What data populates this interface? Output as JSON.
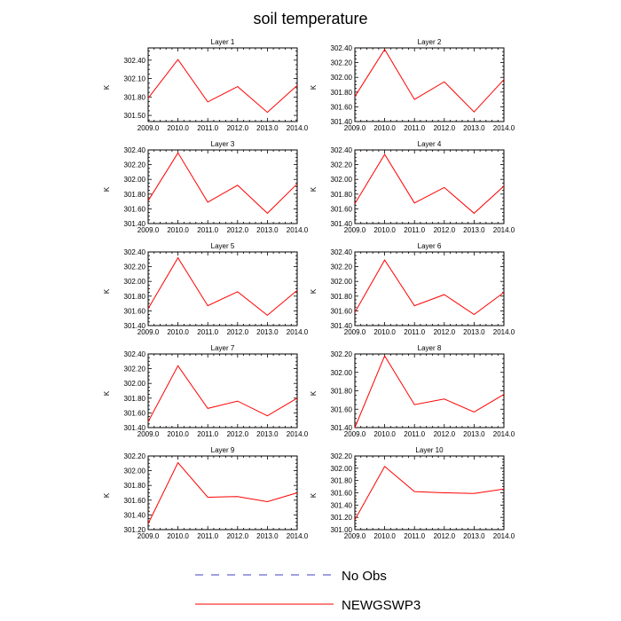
{
  "title": "soil temperature",
  "legend": [
    {
      "name": "No Obs",
      "color": "#4040c0",
      "dash": true
    },
    {
      "name": "NEWGSWP3",
      "color": "#ff0000",
      "dash": false
    }
  ],
  "chart_data": [
    {
      "type": "line",
      "title": "Layer 1",
      "ylabel": "K",
      "x": [
        2009,
        2010,
        2011,
        2012,
        2013,
        2014
      ],
      "xlim": [
        2009,
        2014
      ],
      "ylim": [
        301.4,
        302.6
      ],
      "yticks": [
        301.5,
        301.8,
        302.1,
        302.4
      ],
      "xtick_labels": [
        "2009.0",
        "2010.0",
        "2011.0",
        "2012.0",
        "2013.0",
        "2014.0"
      ],
      "ytick_labels": [
        "301.50",
        "301.80",
        "302.10",
        "302.40"
      ],
      "series": [
        {
          "name": "NEWGSWP3",
          "values": [
            301.78,
            302.41,
            301.72,
            301.97,
            301.55,
            301.99
          ]
        }
      ]
    },
    {
      "type": "line",
      "title": "Layer 2",
      "ylabel": "K",
      "x": [
        2009,
        2010,
        2011,
        2012,
        2013,
        2014
      ],
      "xlim": [
        2009,
        2014
      ],
      "ylim": [
        301.4,
        302.4
      ],
      "yticks": [
        301.4,
        301.6,
        301.8,
        302.0,
        302.2,
        302.4
      ],
      "xtick_labels": [
        "2009.0",
        "2010.0",
        "2011.0",
        "2012.0",
        "2013.0",
        "2014.0"
      ],
      "ytick_labels": [
        "301.40",
        "301.60",
        "301.80",
        "302.00",
        "302.20",
        "302.40"
      ],
      "series": [
        {
          "name": "NEWGSWP3",
          "values": [
            301.74,
            302.38,
            301.7,
            301.94,
            301.53,
            301.97
          ]
        }
      ]
    },
    {
      "type": "line",
      "title": "Layer 3",
      "ylabel": "K",
      "x": [
        2009,
        2010,
        2011,
        2012,
        2013,
        2014
      ],
      "xlim": [
        2009,
        2014
      ],
      "ylim": [
        301.4,
        302.4
      ],
      "yticks": [
        301.4,
        301.6,
        301.8,
        302.0,
        302.2,
        302.4
      ],
      "xtick_labels": [
        "2009.0",
        "2010.0",
        "2011.0",
        "2012.0",
        "2013.0",
        "2014.0"
      ],
      "ytick_labels": [
        "301.40",
        "301.60",
        "301.80",
        "302.00",
        "302.20",
        "302.40"
      ],
      "series": [
        {
          "name": "NEWGSWP3",
          "values": [
            301.71,
            302.36,
            301.69,
            301.92,
            301.54,
            301.94
          ]
        }
      ]
    },
    {
      "type": "line",
      "title": "Layer 4",
      "ylabel": "K",
      "x": [
        2009,
        2010,
        2011,
        2012,
        2013,
        2014
      ],
      "xlim": [
        2009,
        2014
      ],
      "ylim": [
        301.4,
        302.4
      ],
      "yticks": [
        301.4,
        301.6,
        301.8,
        302.0,
        302.2,
        302.4
      ],
      "xtick_labels": [
        "2009.0",
        "2010.0",
        "2011.0",
        "2012.0",
        "2013.0",
        "2014.0"
      ],
      "ytick_labels": [
        "301.40",
        "301.60",
        "301.80",
        "302.00",
        "302.20",
        "302.40"
      ],
      "series": [
        {
          "name": "NEWGSWP3",
          "values": [
            301.67,
            302.34,
            301.68,
            301.89,
            301.54,
            301.91
          ]
        }
      ]
    },
    {
      "type": "line",
      "title": "Layer 5",
      "ylabel": "K",
      "x": [
        2009,
        2010,
        2011,
        2012,
        2013,
        2014
      ],
      "xlim": [
        2009,
        2014
      ],
      "ylim": [
        301.4,
        302.4
      ],
      "yticks": [
        301.4,
        301.6,
        301.8,
        302.0,
        302.2,
        302.4
      ],
      "xtick_labels": [
        "2009.0",
        "2010.0",
        "2011.0",
        "2012.0",
        "2013.0",
        "2014.0"
      ],
      "ytick_labels": [
        "301.40",
        "301.60",
        "301.80",
        "302.00",
        "302.20",
        "302.40"
      ],
      "series": [
        {
          "name": "NEWGSWP3",
          "values": [
            301.63,
            302.32,
            301.67,
            301.86,
            301.54,
            301.88
          ]
        }
      ]
    },
    {
      "type": "line",
      "title": "Layer 6",
      "ylabel": "K",
      "x": [
        2009,
        2010,
        2011,
        2012,
        2013,
        2014
      ],
      "xlim": [
        2009,
        2014
      ],
      "ylim": [
        301.4,
        302.4
      ],
      "yticks": [
        301.4,
        301.6,
        301.8,
        302.0,
        302.2,
        302.4
      ],
      "xtick_labels": [
        "2009.0",
        "2010.0",
        "2011.0",
        "2012.0",
        "2013.0",
        "2014.0"
      ],
      "ytick_labels": [
        "301.40",
        "301.60",
        "301.80",
        "302.00",
        "302.20",
        "302.40"
      ],
      "series": [
        {
          "name": "NEWGSWP3",
          "values": [
            301.58,
            302.29,
            301.67,
            301.82,
            301.55,
            301.85
          ]
        }
      ]
    },
    {
      "type": "line",
      "title": "Layer 7",
      "ylabel": "K",
      "x": [
        2009,
        2010,
        2011,
        2012,
        2013,
        2014
      ],
      "xlim": [
        2009,
        2014
      ],
      "ylim": [
        301.4,
        302.4
      ],
      "yticks": [
        301.4,
        301.6,
        301.8,
        302.0,
        302.2,
        302.4
      ],
      "xtick_labels": [
        "2009.0",
        "2010.0",
        "2011.0",
        "2012.0",
        "2013.0",
        "2014.0"
      ],
      "ytick_labels": [
        "301.40",
        "301.60",
        "301.80",
        "302.00",
        "302.20",
        "302.40"
      ],
      "series": [
        {
          "name": "NEWGSWP3",
          "values": [
            301.48,
            302.24,
            301.66,
            301.76,
            301.56,
            301.8
          ]
        }
      ]
    },
    {
      "type": "line",
      "title": "Layer 8",
      "ylabel": "K",
      "x": [
        2009,
        2010,
        2011,
        2012,
        2013,
        2014
      ],
      "xlim": [
        2009,
        2014
      ],
      "ylim": [
        301.4,
        302.2
      ],
      "yticks": [
        301.4,
        301.6,
        301.8,
        302.0,
        302.2
      ],
      "xtick_labels": [
        "2009.0",
        "2010.0",
        "2011.0",
        "2012.0",
        "2013.0",
        "2014.0"
      ],
      "ytick_labels": [
        "301.40",
        "301.60",
        "301.80",
        "302.00",
        "302.20"
      ],
      "series": [
        {
          "name": "NEWGSWP3",
          "values": [
            301.4,
            302.18,
            301.65,
            301.71,
            301.57,
            301.76
          ]
        }
      ]
    },
    {
      "type": "line",
      "title": "Layer 9",
      "ylabel": "K",
      "x": [
        2009,
        2010,
        2011,
        2012,
        2013,
        2014
      ],
      "xlim": [
        2009,
        2014
      ],
      "ylim": [
        301.2,
        302.2
      ],
      "yticks": [
        301.2,
        301.4,
        301.6,
        301.8,
        302.0,
        302.2
      ],
      "xtick_labels": [
        "2009.0",
        "2010.0",
        "2011.0",
        "2012.0",
        "2013.0",
        "2014.0"
      ],
      "ytick_labels": [
        "301.20",
        "301.40",
        "301.60",
        "301.80",
        "302.00",
        "302.20"
      ],
      "series": [
        {
          "name": "NEWGSWP3",
          "values": [
            301.28,
            302.11,
            301.64,
            301.65,
            301.58,
            301.7
          ]
        }
      ]
    },
    {
      "type": "line",
      "title": "Layer 10",
      "ylabel": "K",
      "x": [
        2009,
        2010,
        2011,
        2012,
        2013,
        2014
      ],
      "xlim": [
        2009,
        2014
      ],
      "ylim": [
        301.0,
        302.2
      ],
      "yticks": [
        301.0,
        301.2,
        301.4,
        301.6,
        301.8,
        302.0,
        302.2
      ],
      "xtick_labels": [
        "2009.0",
        "2010.0",
        "2011.0",
        "2012.0",
        "2013.0",
        "2014.0"
      ],
      "ytick_labels": [
        "301.00",
        "301.20",
        "301.40",
        "301.60",
        "301.80",
        "302.00",
        "302.20"
      ],
      "series": [
        {
          "name": "NEWGSWP3",
          "values": [
            301.16,
            302.03,
            301.62,
            301.6,
            301.59,
            301.66
          ]
        }
      ]
    }
  ]
}
